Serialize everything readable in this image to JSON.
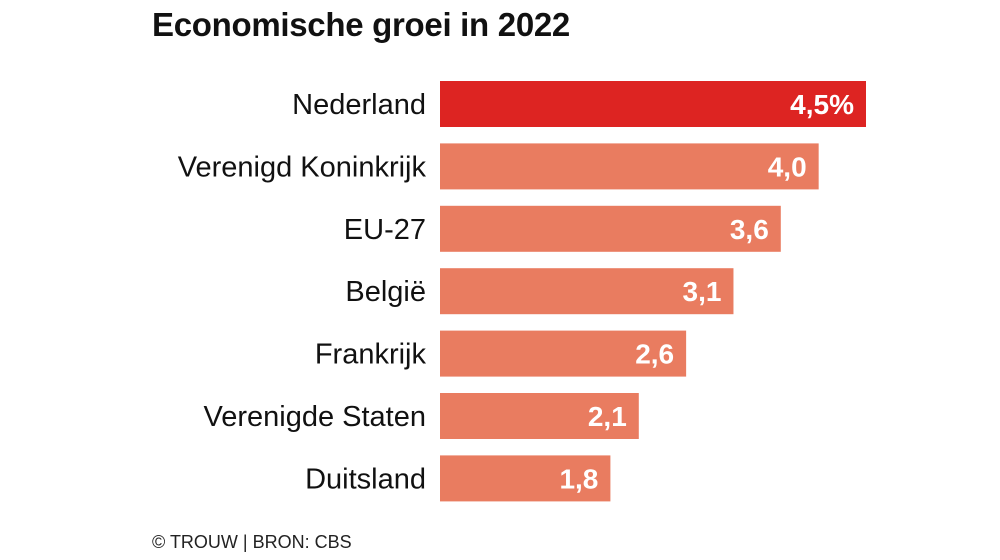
{
  "chart_data": {
    "type": "bar",
    "orientation": "horizontal",
    "title": "Economische groei in 2022",
    "categories": [
      "Nederland",
      "Verenigd Koninkrijk",
      "EU-27",
      "België",
      "Frankrijk",
      "Verenigde Staten",
      "Duitsland"
    ],
    "values": [
      4.5,
      4.0,
      3.6,
      3.1,
      2.6,
      2.1,
      1.8
    ],
    "data_labels": [
      "4,5%",
      "4,0",
      "3,6",
      "3,1",
      "2,6",
      "2,1",
      "1,8"
    ],
    "highlight_category": "Nederland",
    "colors": {
      "highlight": "#dd2422",
      "default": "#e97c60"
    },
    "xlim": [
      0,
      4.5
    ],
    "grid": false,
    "xlabel": "",
    "ylabel": ""
  },
  "footer": "© TROUW | BRON: CBS"
}
